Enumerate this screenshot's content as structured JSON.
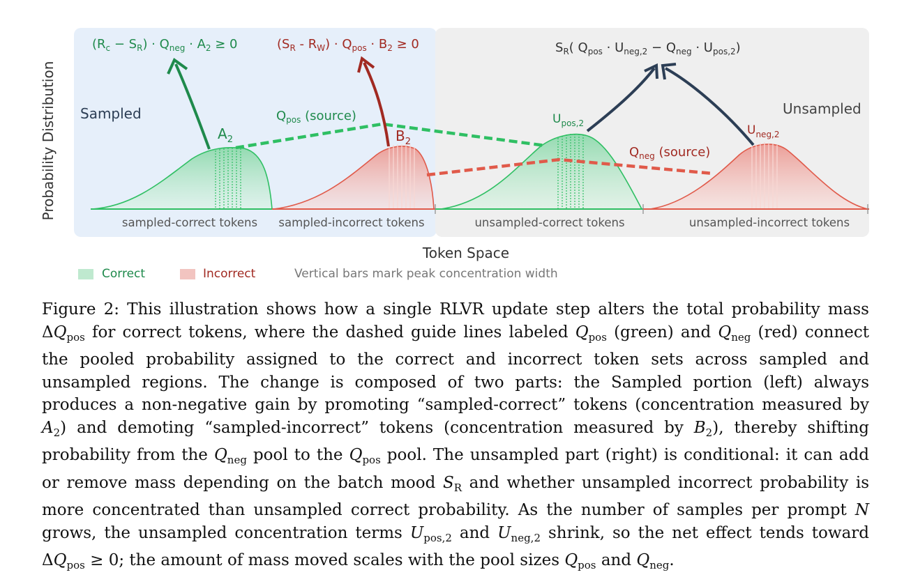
{
  "colors": {
    "green": "#2fa15a",
    "green_dark": "#1f8a4c",
    "green_fill": "#bfe9cf",
    "red": "#c0392b",
    "red_dark": "#a12a22",
    "red_fill": "#f2b8b3",
    "navy": "#2c3e55",
    "sampled_panel": "#e6effa",
    "unsampled_panel": "#efefef"
  },
  "axis": {
    "y_label": "Probability Distribution",
    "x_label": "Token Space"
  },
  "regions": {
    "sampled": "Sampled",
    "unsampled": "Unsampled"
  },
  "token_groups": [
    "sampled-correct tokens",
    "sampled-incorrect tokens",
    "unsampled-correct tokens",
    "unsampled-incorrect tokens"
  ],
  "peaks": {
    "a2": "A",
    "a2_sub": "2",
    "b2": "B",
    "b2_sub": "2",
    "upos": "U",
    "upos_sub": "pos,2",
    "uneg": "U",
    "uneg_sub": "neg,2"
  },
  "guides": {
    "qpos_q": "Q",
    "qpos_sub": "pos",
    "qpos_tail": " (source)",
    "qneg_q": "Q",
    "qneg_sub": "neg",
    "qneg_tail": " (source)"
  },
  "formulas": {
    "f1_a": "(R",
    "f1_b": "c",
    "f1_c": " − S",
    "f1_d": "R",
    "f1_e": ") · Q",
    "f1_f": "neg",
    "f1_g": " · A",
    "f1_h": "2",
    "f1_i": " ≥ 0",
    "f2_a": "(S",
    "f2_b": "R",
    "f2_c": " - R",
    "f2_d": "W",
    "f2_e": ") · Q",
    "f2_f": "pos",
    "f2_g": " · B",
    "f2_h": "2",
    "f2_i": " ≥ 0",
    "f3_a": "S",
    "f3_b": "R",
    "f3_c": "( Q",
    "f3_d": "pos",
    "f3_e": " · U",
    "f3_f": "neg,2",
    "f3_g": " − Q",
    "f3_h": "neg",
    "f3_i": " · U",
    "f3_j": "pos,2",
    "f3_k": ")"
  },
  "legend": {
    "correct": "Correct",
    "incorrect": "Incorrect",
    "note": "Vertical bars mark peak concentration width"
  },
  "caption": {
    "label": "Figure 2:",
    "s1": " This illustration shows how a single RLVR update step alters the total probability mass ",
    "dq_delta": "Δ",
    "dq_q": "Q",
    "dq_sub": "pos",
    "s2": " for correct tokens, where the dashed guide lines labeled ",
    "q": "Q",
    "pos": "pos",
    "neg": "neg",
    "s3": " (green) and ",
    "s4": " (red) connect the pooled probability assigned to the correct and incorrect token sets across sampled and unsampled regions. The change is composed of two parts: the Sampled portion (left) always produces a non-negative gain by promoting “sampled-correct” tokens (concentration measured by ",
    "a": "A",
    "b": "B",
    "two": "2",
    "s5": ") and demoting “sampled-incorrect” tokens (concentration measured by ",
    "s6": "), thereby shifting probability from the ",
    "s7": " pool to the ",
    "s8": " pool. The unsampled part (right) is conditional: it can add or remove mass depending on the batch mood ",
    "s": "S",
    "r": "R",
    "s9": " and whether unsampled incorrect probability is more concentrated than unsampled correct probability. As the number of samples per prompt ",
    "n": "N",
    "s10": " grows, the unsampled concentration terms ",
    "u": "U",
    "pos2": "pos,2",
    "neg2": "neg,2",
    "and": " and ",
    "s11": " shrink, so the net effect tends toward ",
    "geq": " ≥ 0",
    "s12": "; the amount of mass moved scales with the pool sizes ",
    "s13": "."
  }
}
